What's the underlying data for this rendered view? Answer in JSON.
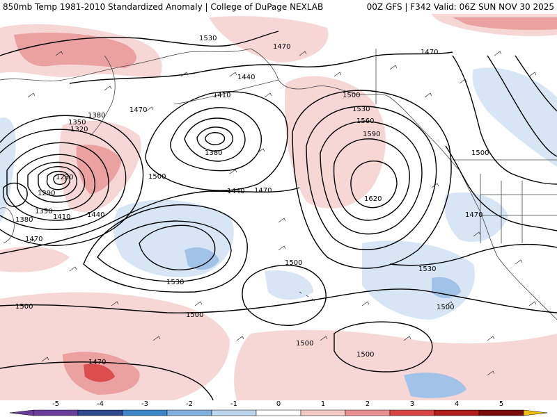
{
  "title_left": "850mb Temp 1981-2010 Standardized Anomaly | College of DuPage NEXLAB",
  "title_right": "00Z GFS | F342 Valid: 06Z SUN NOV 30 2025",
  "contour_labels": [
    "1530",
    "1470",
    "1470",
    "1410",
    "1440",
    "1470",
    "1380",
    "1350",
    "1320",
    "1230",
    "1290",
    "1350",
    "1410",
    "1440",
    "1380",
    "1470",
    "1500",
    "1380",
    "1440",
    "1470",
    "1500",
    "1530",
    "1560",
    "1590",
    "1620",
    "1500",
    "1470",
    "1530",
    "1500",
    "1500",
    "1500",
    "1500",
    "1500",
    "1500",
    "1530",
    "1470"
  ],
  "colorbar": {
    "ticks": [
      "-5",
      "-4",
      "-3",
      "-2",
      "-1",
      "0",
      "1",
      "2",
      "3",
      "4",
      "5"
    ],
    "colors": [
      "#6a3d9a",
      "#2c4a8c",
      "#3a86c8",
      "#7fb0de",
      "#bcd5ee",
      "#ffffff",
      "#f6c9c9",
      "#e89090",
      "#d94545",
      "#b01c1c",
      "#7a0a0a"
    ],
    "end_low": "#6a3d9a",
    "end_high": "#f0c010"
  },
  "colors": {
    "warm_light": "#f7d4d4",
    "warm_mid": "#ec9c9c",
    "warm_strong": "#d94545",
    "cool_light": "#d6e4f4",
    "cool_mid": "#9cc0e6",
    "contour": "#000000",
    "coast": "#444444"
  }
}
